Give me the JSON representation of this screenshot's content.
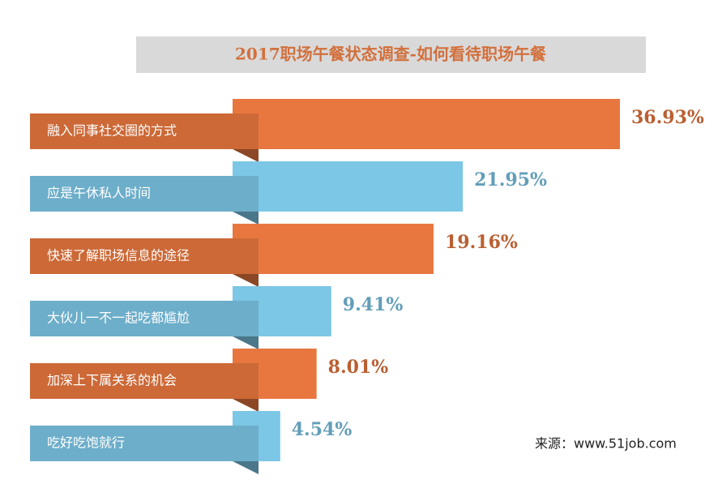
{
  "chart_data": {
    "type": "bar",
    "orientation": "horizontal",
    "title": "2017职场午餐状态调查-如何看待职场午餐",
    "categories": [
      "融入同事社交圈的方式",
      "应是午休私人时间",
      "快速了解职场信息的途径",
      "大伙儿一不一起吃都尴尬",
      "加深上下属关系的机会",
      "吃好吃饱就行"
    ],
    "values": [
      36.93,
      21.95,
      19.16,
      9.41,
      8.01,
      4.54
    ],
    "value_labels": [
      "36.93%",
      "21.95%",
      "19.16%",
      "9.41%",
      "8.01%",
      "4.54%"
    ],
    "colors": [
      "#e8773f",
      "#7cc6e6",
      "#e8773f",
      "#7cc6e6",
      "#e8773f",
      "#7cc6e6"
    ],
    "source": "来源：www.51job.com"
  }
}
